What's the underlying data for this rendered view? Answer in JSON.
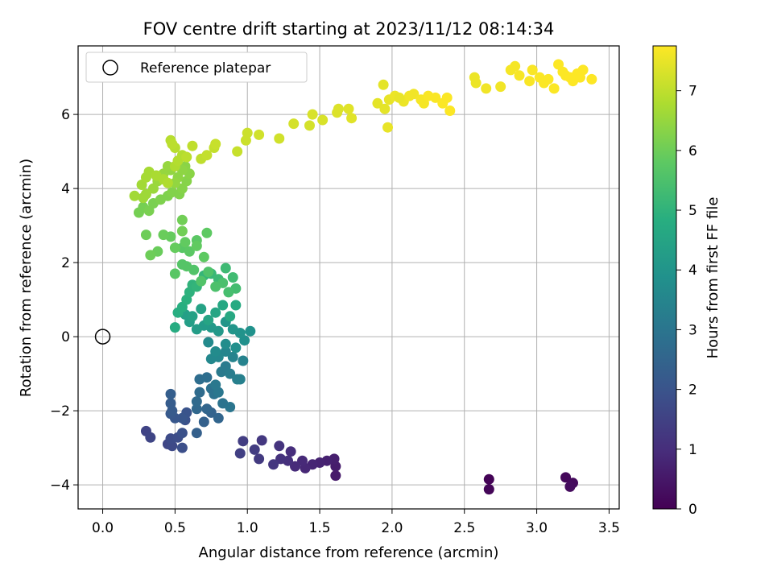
{
  "chart_data": {
    "type": "scatter",
    "title": "FOV centre drift starting at 2023/11/12 08:14:34",
    "xlabel": "Angular distance from reference (arcmin)",
    "ylabel": "Rotation from reference (arcmin)",
    "xlim": [
      -0.17,
      3.57
    ],
    "ylim": [
      -4.65,
      7.85
    ],
    "x_ticks": [
      "0.0",
      "0.5",
      "1.0",
      "1.5",
      "2.0",
      "2.5",
      "3.0",
      "3.5"
    ],
    "x_tick_values": [
      0,
      0.5,
      1.0,
      1.5,
      2.0,
      2.5,
      3.0,
      3.5
    ],
    "y_ticks": [
      "−4",
      "−2",
      "0",
      "2",
      "4",
      "6"
    ],
    "y_tick_values": [
      -4,
      -2,
      0,
      2,
      4,
      6
    ],
    "grid": true,
    "legend": {
      "position": "upper-left",
      "label": "Reference platepar"
    },
    "reference_point": {
      "x": 0.0,
      "y": 0.0
    },
    "colorbar": {
      "label": "Hours from first FF file",
      "colormap": "viridis",
      "range": [
        0,
        7.75
      ],
      "ticks": [
        "0",
        "1",
        "2",
        "3",
        "4",
        "5",
        "6",
        "7"
      ],
      "tick_values": [
        0,
        1,
        2,
        3,
        4,
        5,
        6,
        7
      ]
    },
    "points": [
      [
        2.67,
        -3.85,
        0.05
      ],
      [
        2.67,
        -4.12,
        0.1
      ],
      [
        3.2,
        -3.8,
        0.15
      ],
      [
        3.25,
        -3.95,
        0.2
      ],
      [
        3.23,
        -4.05,
        0.25
      ],
      [
        1.61,
        -3.75,
        0.55
      ],
      [
        1.61,
        -3.5,
        0.6
      ],
      [
        1.6,
        -3.3,
        0.65
      ],
      [
        1.55,
        -3.35,
        0.7
      ],
      [
        1.5,
        -3.4,
        0.75
      ],
      [
        1.45,
        -3.45,
        0.8
      ],
      [
        1.4,
        -3.55,
        0.85
      ],
      [
        1.38,
        -3.35,
        0.9
      ],
      [
        1.33,
        -3.5,
        0.95
      ],
      [
        1.3,
        -3.1,
        1.0
      ],
      [
        1.28,
        -3.35,
        1.05
      ],
      [
        1.23,
        -3.3,
        1.1
      ],
      [
        1.22,
        -2.95,
        1.15
      ],
      [
        1.18,
        -3.45,
        1.2
      ],
      [
        1.1,
        -2.8,
        1.25
      ],
      [
        1.08,
        -3.3,
        1.3
      ],
      [
        1.05,
        -3.05,
        1.35
      ],
      [
        0.97,
        -2.82,
        1.4
      ],
      [
        0.95,
        -3.15,
        1.45
      ],
      [
        0.3,
        -2.55,
        1.55
      ],
      [
        0.33,
        -2.72,
        1.6
      ],
      [
        0.45,
        -2.9,
        1.65
      ],
      [
        0.48,
        -2.95,
        1.7
      ],
      [
        0.47,
        -2.75,
        1.75
      ],
      [
        0.52,
        -2.72,
        1.8
      ],
      [
        0.55,
        -3.0,
        1.85
      ],
      [
        0.55,
        -2.6,
        1.9
      ],
      [
        0.57,
        -2.25,
        1.95
      ],
      [
        0.58,
        -2.05,
        2.0
      ],
      [
        0.55,
        -2.2,
        2.05
      ],
      [
        0.5,
        -2.2,
        2.1
      ],
      [
        0.47,
        -2.08,
        2.15
      ],
      [
        0.48,
        -2.0,
        2.2
      ],
      [
        0.47,
        -1.8,
        2.25
      ],
      [
        0.47,
        -1.55,
        2.3
      ],
      [
        0.65,
        -2.6,
        2.35
      ],
      [
        0.7,
        -2.3,
        2.4
      ],
      [
        0.75,
        -2.05,
        2.45
      ],
      [
        0.8,
        -2.2,
        2.5
      ],
      [
        0.72,
        -1.95,
        2.55
      ],
      [
        0.65,
        -1.95,
        2.6
      ],
      [
        0.65,
        -1.75,
        2.65
      ],
      [
        0.67,
        -1.5,
        2.7
      ],
      [
        0.67,
        -1.15,
        2.75
      ],
      [
        0.72,
        -1.1,
        2.8
      ],
      [
        0.75,
        -1.4,
        2.85
      ],
      [
        0.77,
        -1.55,
        2.9
      ],
      [
        0.83,
        -1.8,
        2.95
      ],
      [
        0.88,
        -1.9,
        3.0
      ],
      [
        0.8,
        -1.5,
        3.05
      ],
      [
        0.78,
        -1.3,
        3.1
      ],
      [
        0.82,
        -0.95,
        3.15
      ],
      [
        0.85,
        -0.8,
        3.2
      ],
      [
        0.88,
        -1.0,
        3.25
      ],
      [
        0.93,
        -1.15,
        3.3
      ],
      [
        0.95,
        -1.15,
        3.35
      ],
      [
        0.97,
        -0.65,
        3.4
      ],
      [
        0.9,
        -0.55,
        3.45
      ],
      [
        0.85,
        -0.4,
        3.5
      ],
      [
        0.8,
        -0.55,
        3.55
      ],
      [
        0.75,
        -0.6,
        3.6
      ],
      [
        0.73,
        -0.15,
        3.65
      ],
      [
        0.78,
        -0.4,
        3.7
      ],
      [
        0.85,
        -0.2,
        3.75
      ],
      [
        0.92,
        -0.3,
        3.8
      ],
      [
        0.98,
        -0.1,
        3.85
      ],
      [
        1.02,
        0.15,
        3.9
      ],
      [
        0.95,
        0.1,
        3.95
      ],
      [
        0.9,
        0.2,
        4.0
      ],
      [
        0.85,
        0.4,
        4.05
      ],
      [
        0.8,
        0.15,
        4.1
      ],
      [
        0.75,
        0.25,
        4.15
      ],
      [
        0.7,
        0.3,
        4.2
      ],
      [
        0.65,
        0.2,
        4.25
      ],
      [
        0.6,
        0.4,
        4.3
      ],
      [
        0.57,
        0.6,
        4.35
      ],
      [
        0.62,
        0.55,
        4.4
      ],
      [
        0.68,
        0.75,
        4.45
      ],
      [
        0.73,
        0.45,
        4.5
      ],
      [
        0.78,
        0.65,
        4.55
      ],
      [
        0.83,
        0.85,
        4.6
      ],
      [
        0.88,
        0.55,
        4.65
      ],
      [
        0.92,
        0.85,
        4.7
      ],
      [
        0.5,
        0.25,
        4.75
      ],
      [
        0.52,
        0.65,
        4.8
      ],
      [
        0.55,
        0.8,
        4.85
      ],
      [
        0.58,
        1.0,
        4.9
      ],
      [
        0.6,
        1.2,
        4.95
      ],
      [
        0.62,
        1.4,
        5.0
      ],
      [
        0.65,
        1.35,
        5.05
      ],
      [
        0.7,
        1.65,
        5.1
      ],
      [
        0.75,
        1.7,
        5.15
      ],
      [
        0.8,
        1.55,
        5.2
      ],
      [
        0.85,
        1.85,
        5.25
      ],
      [
        0.9,
        1.6,
        5.3
      ],
      [
        0.92,
        1.3,
        5.35
      ],
      [
        0.87,
        1.2,
        5.4
      ],
      [
        0.83,
        1.45,
        5.45
      ],
      [
        0.78,
        1.35,
        5.5
      ],
      [
        0.73,
        1.75,
        5.55
      ],
      [
        0.68,
        1.5,
        5.6
      ],
      [
        0.63,
        1.8,
        5.6
      ],
      [
        0.58,
        1.9,
        5.65
      ],
      [
        0.55,
        1.95,
        5.65
      ],
      [
        0.5,
        1.7,
        5.7
      ],
      [
        0.55,
        2.4,
        5.7
      ],
      [
        0.6,
        2.3,
        5.75
      ],
      [
        0.65,
        2.6,
        5.75
      ],
      [
        0.7,
        2.15,
        5.8
      ],
      [
        0.72,
        2.8,
        5.8
      ],
      [
        0.65,
        2.45,
        5.85
      ],
      [
        0.57,
        2.55,
        5.85
      ],
      [
        0.5,
        2.4,
        5.9
      ],
      [
        0.47,
        2.7,
        5.9
      ],
      [
        0.42,
        2.75,
        5.95
      ],
      [
        0.38,
        2.3,
        5.95
      ],
      [
        0.33,
        2.2,
        6.0
      ],
      [
        0.3,
        2.75,
        6.0
      ],
      [
        0.55,
        2.85,
        6.05
      ],
      [
        0.55,
        3.15,
        6.05
      ],
      [
        0.25,
        3.35,
        6.1
      ],
      [
        0.28,
        3.5,
        6.1
      ],
      [
        0.32,
        3.4,
        6.15
      ],
      [
        0.35,
        3.6,
        6.15
      ],
      [
        0.4,
        3.7,
        6.2
      ],
      [
        0.45,
        3.8,
        6.2
      ],
      [
        0.48,
        3.9,
        6.25
      ],
      [
        0.53,
        3.85,
        6.25
      ],
      [
        0.55,
        4.0,
        6.3
      ],
      [
        0.58,
        4.2,
        6.3
      ],
      [
        0.6,
        4.4,
        6.35
      ],
      [
        0.57,
        4.6,
        6.35
      ],
      [
        0.55,
        4.5,
        6.4
      ],
      [
        0.52,
        4.3,
        6.4
      ],
      [
        0.5,
        4.15,
        6.45
      ],
      [
        0.47,
        4.5,
        6.45
      ],
      [
        0.45,
        4.6,
        6.5
      ],
      [
        0.42,
        4.4,
        6.5
      ],
      [
        0.38,
        4.2,
        6.55
      ],
      [
        0.35,
        4.0,
        6.55
      ],
      [
        0.3,
        3.85,
        6.6
      ],
      [
        0.28,
        3.75,
        6.6
      ],
      [
        0.22,
        3.8,
        6.65
      ],
      [
        0.27,
        4.1,
        6.65
      ],
      [
        0.3,
        4.3,
        6.7
      ],
      [
        0.32,
        4.45,
        6.7
      ],
      [
        0.37,
        4.35,
        6.75
      ],
      [
        0.42,
        4.25,
        6.75
      ],
      [
        0.45,
        4.15,
        6.8
      ],
      [
        0.5,
        4.6,
        6.8
      ],
      [
        0.52,
        4.75,
        6.85
      ],
      [
        0.55,
        4.9,
        6.85
      ],
      [
        0.5,
        5.1,
        6.9
      ],
      [
        0.47,
        5.3,
        6.9
      ],
      [
        0.48,
        5.2,
        6.95
      ],
      [
        0.58,
        4.85,
        6.95
      ],
      [
        0.62,
        5.15,
        7.0
      ],
      [
        0.68,
        4.8,
        7.0
      ],
      [
        0.72,
        4.9,
        7.05
      ],
      [
        0.77,
        5.1,
        7.05
      ],
      [
        0.78,
        5.2,
        7.1
      ],
      [
        0.93,
        5.0,
        7.1
      ],
      [
        0.99,
        5.3,
        7.15
      ],
      [
        1.0,
        5.5,
        7.15
      ],
      [
        1.08,
        5.45,
        7.2
      ],
      [
        1.22,
        5.35,
        7.2
      ],
      [
        1.32,
        5.75,
        7.25
      ],
      [
        1.43,
        5.7,
        7.25
      ],
      [
        1.45,
        6.0,
        7.3
      ],
      [
        1.52,
        5.85,
        7.3
      ],
      [
        1.62,
        6.05,
        7.35
      ],
      [
        1.63,
        6.15,
        7.35
      ],
      [
        1.7,
        6.15,
        7.4
      ],
      [
        1.72,
        5.9,
        7.4
      ],
      [
        1.9,
        6.3,
        7.45
      ],
      [
        1.95,
        6.15,
        7.45
      ],
      [
        1.98,
        6.4,
        7.5
      ],
      [
        1.97,
        5.65,
        7.5
      ],
      [
        2.02,
        6.5,
        7.55
      ],
      [
        2.08,
        6.35,
        7.55
      ],
      [
        2.12,
        6.5,
        7.6
      ],
      [
        2.15,
        6.55,
        7.6
      ],
      [
        2.2,
        6.4,
        7.65
      ],
      [
        2.22,
        6.3,
        7.65
      ],
      [
        2.25,
        6.5,
        7.7
      ],
      [
        2.3,
        6.45,
        7.7
      ],
      [
        2.35,
        6.3,
        7.72
      ],
      [
        2.38,
        6.45,
        7.72
      ],
      [
        2.4,
        6.1,
        7.74
      ],
      [
        1.94,
        6.8,
        7.45
      ],
      [
        2.05,
        6.45,
        7.5
      ],
      [
        2.57,
        7.0,
        7.55
      ],
      [
        2.58,
        6.85,
        7.55
      ],
      [
        2.65,
        6.7,
        7.6
      ],
      [
        2.75,
        6.75,
        7.6
      ],
      [
        2.82,
        7.2,
        7.65
      ],
      [
        2.85,
        7.3,
        7.65
      ],
      [
        2.88,
        7.05,
        7.68
      ],
      [
        2.95,
        6.9,
        7.7
      ],
      [
        2.97,
        7.2,
        7.7
      ],
      [
        3.02,
        7.0,
        7.72
      ],
      [
        3.05,
        6.85,
        7.72
      ],
      [
        3.08,
        6.95,
        7.73
      ],
      [
        3.12,
        6.7,
        7.73
      ],
      [
        3.15,
        7.35,
        7.74
      ],
      [
        3.2,
        7.05,
        7.74
      ],
      [
        3.25,
        6.9,
        7.75
      ],
      [
        3.28,
        7.1,
        7.75
      ],
      [
        3.32,
        7.2,
        7.75
      ],
      [
        3.3,
        7.0,
        7.75
      ],
      [
        3.38,
        6.95,
        7.75
      ],
      [
        3.23,
        7.0,
        7.75
      ],
      [
        3.18,
        7.15,
        7.74
      ]
    ]
  }
}
